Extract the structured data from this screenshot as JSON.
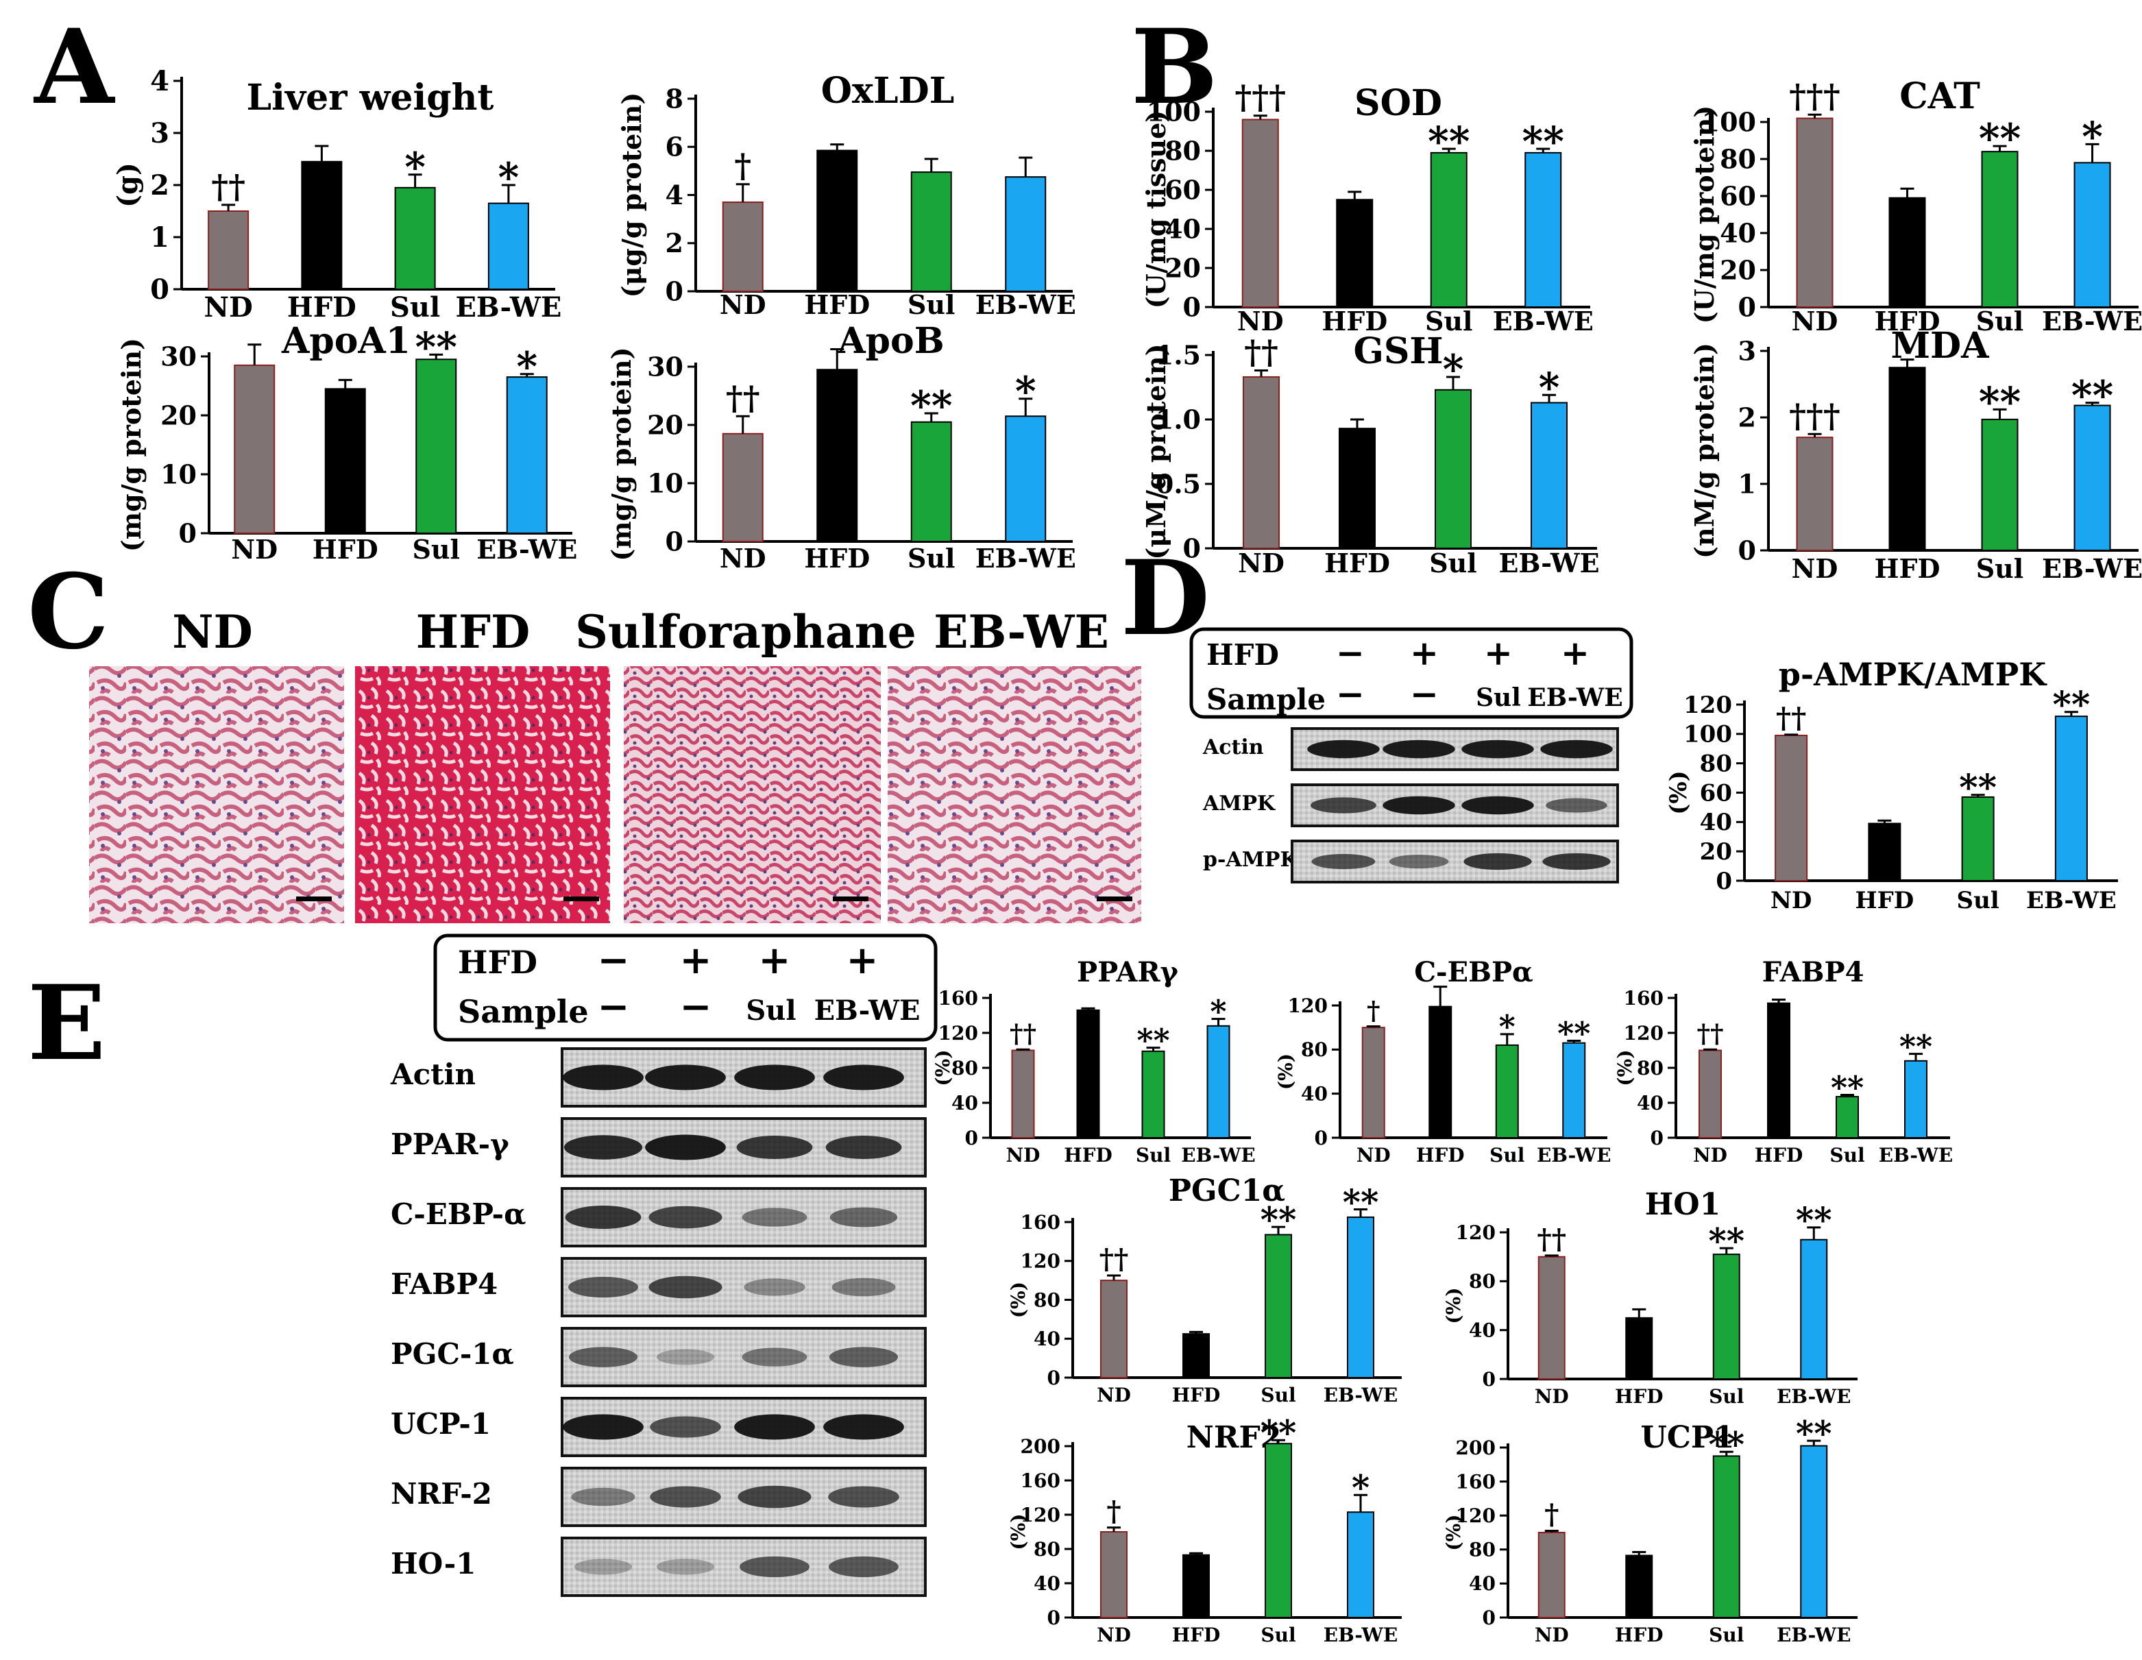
{
  "panel_letters": [
    "A",
    "B",
    "C",
    "D",
    "E"
  ],
  "colors": {
    "ND": "#7f7373",
    "HFD": "#000000",
    "Sul": "#1aa53a",
    "EB-WE": "#1aa6f0",
    "ND_edge": "#8b1f1f"
  },
  "histology": {
    "labels": [
      "ND",
      "HFD",
      "Sulforaphane",
      "EB-WE"
    ]
  },
  "blot_D": {
    "header_rows": [
      {
        "label": "HFD",
        "values": [
          "−",
          "+",
          "+",
          "+"
        ]
      },
      {
        "label": "Sample",
        "values": [
          "−",
          "−",
          "Sul",
          "EB-WE"
        ]
      }
    ],
    "bands": [
      "Actin",
      "AMPK",
      "p-AMPK"
    ]
  },
  "blot_E": {
    "header_rows": [
      {
        "label": "HFD",
        "values": [
          "−",
          "+",
          "+",
          "+"
        ]
      },
      {
        "label": "Sample",
        "values": [
          "−",
          "−",
          "Sul",
          "EB-WE"
        ]
      }
    ],
    "bands": [
      "Actin",
      "PPAR-γ",
      "C-EBP-α",
      "FABP4",
      "PGC-1α",
      "UCP-1",
      "NRF-2",
      "HO-1"
    ]
  },
  "chart_data": [
    {
      "id": "liver",
      "panel": "A",
      "type": "bar",
      "title": "Liver weight",
      "ylabel": "(g)",
      "ylim": [
        0,
        4
      ],
      "yticks": [
        "0",
        "1",
        "2",
        "3",
        "4"
      ],
      "categories": [
        "ND",
        "HFD",
        "Sul",
        "EB-WE"
      ],
      "values": [
        1.5,
        2.45,
        1.95,
        1.65
      ],
      "errors": [
        0.12,
        0.3,
        0.25,
        0.35
      ],
      "annotations": [
        "††",
        "",
        "*",
        "*"
      ]
    },
    {
      "id": "oxldl",
      "panel": "A",
      "type": "bar",
      "title": "OxLDL",
      "ylabel": "(μg/g protein)",
      "ylim": [
        0,
        8
      ],
      "yticks": [
        "0",
        "2",
        "4",
        "6",
        "8"
      ],
      "categories": [
        "ND",
        "HFD",
        "Sul",
        "EB-WE"
      ],
      "values": [
        3.7,
        5.85,
        4.95,
        4.75
      ],
      "errors": [
        0.75,
        0.25,
        0.55,
        0.8
      ],
      "annotations": [
        "†",
        "",
        "",
        ""
      ]
    },
    {
      "id": "apoa1",
      "panel": "A",
      "type": "bar",
      "title": "ApoA1",
      "ylabel": "(mg/g protein)",
      "ylim": [
        0,
        30
      ],
      "yticks": [
        "0",
        "10",
        "20",
        "30"
      ],
      "categories": [
        "ND",
        "HFD",
        "Sul",
        "EB-WE"
      ],
      "values": [
        28.5,
        24.5,
        29.5,
        26.5
      ],
      "errors": [
        3.5,
        1.5,
        0.8,
        0.5
      ],
      "annotations": [
        "",
        "",
        "**",
        "*"
      ]
    },
    {
      "id": "apob",
      "panel": "A",
      "type": "bar",
      "title": "ApoB",
      "ylabel": "(mg/g protein)",
      "ylim": [
        0,
        30
      ],
      "yticks": [
        "0",
        "10",
        "20",
        "30"
      ],
      "categories": [
        "ND",
        "HFD",
        "Sul",
        "EB-WE"
      ],
      "values": [
        18.5,
        29.5,
        20.5,
        21.5
      ],
      "errors": [
        3.0,
        3.5,
        1.5,
        3.0
      ],
      "annotations": [
        "††",
        "",
        "**",
        "*"
      ]
    },
    {
      "id": "sod",
      "panel": "B",
      "type": "bar",
      "title": "SOD",
      "ylabel": "(U/mg tissue)",
      "ylim": [
        0,
        100
      ],
      "yticks": [
        "0",
        "20",
        "40",
        "60",
        "80",
        "100"
      ],
      "categories": [
        "ND",
        "HFD",
        "Sul",
        "EB-WE"
      ],
      "values": [
        96,
        55,
        79,
        79
      ],
      "errors": [
        2,
        4,
        2,
        2
      ],
      "annotations": [
        "†††",
        "",
        "**",
        "**"
      ]
    },
    {
      "id": "cat",
      "panel": "B",
      "type": "bar",
      "title": "CAT",
      "ylabel": "(U/mg protein)",
      "ylim": [
        0,
        100
      ],
      "yticks": [
        "0",
        "20",
        "40",
        "60",
        "80",
        "100"
      ],
      "categories": [
        "ND",
        "HFD",
        "Sul",
        "EB-WE"
      ],
      "values": [
        102,
        59,
        84,
        78
      ],
      "errors": [
        2,
        5,
        3,
        10
      ],
      "annotations": [
        "†††",
        "",
        "**",
        "*"
      ]
    },
    {
      "id": "gsh",
      "panel": "B",
      "type": "bar",
      "title": "GSH",
      "ylabel": "(μM/g protein)",
      "ylim": [
        0,
        1.5
      ],
      "yticks": [
        "0",
        "0.5",
        "1.0",
        "1.5"
      ],
      "categories": [
        "ND",
        "HFD",
        "Sul",
        "EB-WE"
      ],
      "values": [
        1.33,
        0.93,
        1.23,
        1.13
      ],
      "errors": [
        0.05,
        0.07,
        0.1,
        0.06
      ],
      "annotations": [
        "††",
        "",
        "*",
        "*"
      ]
    },
    {
      "id": "mda",
      "panel": "B",
      "type": "bar",
      "title": "MDA",
      "ylabel": "(nM/g protein)",
      "ylim": [
        0,
        3
      ],
      "yticks": [
        "0",
        "1",
        "2",
        "3"
      ],
      "categories": [
        "ND",
        "HFD",
        "Sul",
        "EB-WE"
      ],
      "values": [
        1.7,
        2.75,
        1.97,
        2.18
      ],
      "errors": [
        0.05,
        0.12,
        0.15,
        0.04
      ],
      "annotations": [
        "†††",
        "",
        "**",
        "**"
      ]
    },
    {
      "id": "ampk",
      "panel": "D",
      "type": "bar",
      "title": "p-AMPK/AMPK",
      "ylabel": "(%)",
      "ylim": [
        0,
        120
      ],
      "yticks": [
        "0",
        "20",
        "40",
        "60",
        "80",
        "100",
        "120"
      ],
      "categories": [
        "ND",
        "HFD",
        "Sul",
        "EB-WE"
      ],
      "values": [
        99,
        39,
        57,
        112
      ],
      "errors": [
        0.5,
        2,
        1.5,
        3
      ],
      "annotations": [
        "††",
        "",
        "**",
        "**"
      ]
    },
    {
      "id": "pparg",
      "panel": "E",
      "type": "bar",
      "title": "PPARγ",
      "ylabel": "(%)",
      "ylim": [
        0,
        160
      ],
      "yticks": [
        "0",
        "40",
        "80",
        "120",
        "160"
      ],
      "categories": [
        "ND",
        "HFD",
        "Sul",
        "EB-WE"
      ],
      "values": [
        100,
        146,
        99,
        128
      ],
      "errors": [
        1,
        2,
        4,
        8
      ],
      "annotations": [
        "††",
        "",
        "**",
        "*"
      ]
    },
    {
      "id": "cebpa",
      "panel": "E",
      "type": "bar",
      "title": "C-EBPα",
      "ylabel": "(%)",
      "ylim": [
        0,
        120
      ],
      "yticks": [
        "0",
        "40",
        "80",
        "120"
      ],
      "categories": [
        "ND",
        "HFD",
        "Sul",
        "EB-WE"
      ],
      "values": [
        100,
        119,
        84,
        86
      ],
      "errors": [
        1,
        18,
        10,
        2
      ],
      "annotations": [
        "†",
        "",
        "*",
        "**"
      ]
    },
    {
      "id": "fabp4",
      "panel": "E",
      "type": "bar",
      "title": "FABP4",
      "ylabel": "(%)",
      "ylim": [
        0,
        160
      ],
      "yticks": [
        "0",
        "40",
        "80",
        "120",
        "160"
      ],
      "categories": [
        "ND",
        "HFD",
        "Sul",
        "EB-WE"
      ],
      "values": [
        100,
        154,
        47,
        88
      ],
      "errors": [
        1,
        4,
        2,
        8
      ],
      "annotations": [
        "††",
        "",
        "**",
        "**"
      ]
    },
    {
      "id": "pgc1a",
      "panel": "E",
      "type": "bar",
      "title": "PGC1α",
      "ylabel": "(%)",
      "ylim": [
        0,
        160
      ],
      "yticks": [
        "0",
        "40",
        "80",
        "120",
        "160"
      ],
      "categories": [
        "ND",
        "HFD",
        "Sul",
        "EB-WE"
      ],
      "values": [
        100,
        45,
        147,
        165
      ],
      "errors": [
        5,
        2,
        8,
        8
      ],
      "annotations": [
        "††",
        "",
        "**",
        "**"
      ]
    },
    {
      "id": "ho1",
      "panel": "E",
      "type": "bar",
      "title": "HO1",
      "ylabel": "(%)",
      "ylim": [
        0,
        120
      ],
      "yticks": [
        "0",
        "40",
        "80",
        "120"
      ],
      "categories": [
        "ND",
        "HFD",
        "Sul",
        "EB-WE"
      ],
      "values": [
        100,
        50,
        102,
        114
      ],
      "errors": [
        1,
        7,
        5,
        10
      ],
      "annotations": [
        "††",
        "",
        "**",
        "**"
      ]
    },
    {
      "id": "nrf2",
      "panel": "E",
      "type": "bar",
      "title": "NRF2",
      "ylabel": "(%)",
      "ylim": [
        0,
        200
      ],
      "yticks": [
        "0",
        "40",
        "80",
        "120",
        "160",
        "200"
      ],
      "categories": [
        "ND",
        "HFD",
        "Sul",
        "EB-WE"
      ],
      "values": [
        100,
        73,
        203,
        123
      ],
      "errors": [
        5,
        2,
        4,
        20
      ],
      "annotations": [
        "†",
        "",
        "**",
        "*"
      ]
    },
    {
      "id": "ucp1",
      "panel": "E",
      "type": "bar",
      "title": "UCP1",
      "ylabel": "(%)",
      "ylim": [
        0,
        200
      ],
      "yticks": [
        "0",
        "40",
        "80",
        "120",
        "160",
        "200"
      ],
      "categories": [
        "ND",
        "HFD",
        "Sul",
        "EB-WE"
      ],
      "values": [
        100,
        73,
        190,
        202
      ],
      "errors": [
        2,
        4,
        5,
        6
      ],
      "annotations": [
        "†",
        "",
        "**",
        "**"
      ]
    }
  ]
}
